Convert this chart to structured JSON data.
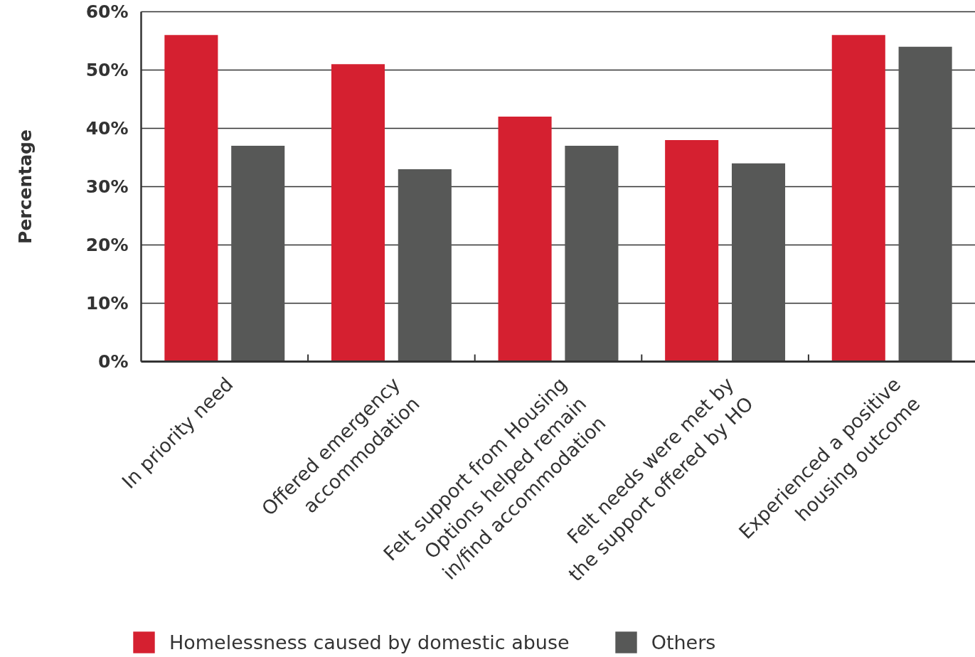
{
  "chart_data": {
    "type": "bar",
    "ylabel": "Percentage",
    "categories": [
      "In priority need",
      "Offered emergency accommodation",
      "Felt support from Housing Options helped remain in/find accommodation",
      "Felt needs were met by the support offered by HO",
      "Experienced a positive housing outcome"
    ],
    "series": [
      {
        "name": "Homelessness caused by domestic abuse",
        "color": "#d52030",
        "values": [
          56,
          51,
          42,
          38,
          56
        ]
      },
      {
        "name": "Others",
        "color": "#575857",
        "values": [
          37,
          33,
          37,
          34,
          54
        ]
      }
    ],
    "ylim": [
      0,
      60
    ],
    "yticks": [
      {
        "value": 0,
        "label": "0%"
      },
      {
        "value": 10,
        "label": "10%"
      },
      {
        "value": 20,
        "label": "20%"
      },
      {
        "value": 30,
        "label": "30%"
      },
      {
        "value": 40,
        "label": "40%"
      },
      {
        "value": 50,
        "label": "50%"
      },
      {
        "value": 60,
        "label": "60%"
      }
    ],
    "grid": "y",
    "legend": "bottom left"
  }
}
